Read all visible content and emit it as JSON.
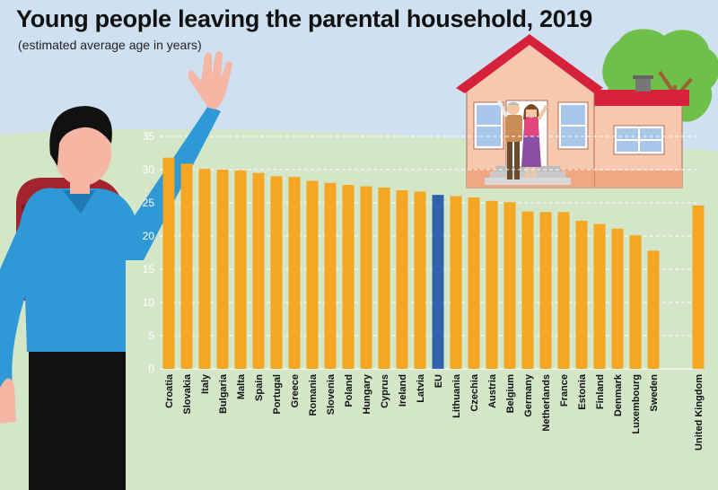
{
  "header": {
    "title": "Young people leaving the parental household, 2019",
    "subtitle": "(estimated average age in years)"
  },
  "colors": {
    "bar": "#f5a623",
    "eu_bar": "#2f63ad",
    "background": "#cfe0f1",
    "ground": "#d3e6c8"
  },
  "chart_data": {
    "type": "bar",
    "title": "Young people leaving the parental household, 2019",
    "subtitle": "(estimated average age in years)",
    "xlabel": "",
    "ylabel": "",
    "ylim": [
      0,
      35
    ],
    "yticks": [
      0,
      5,
      10,
      15,
      20,
      25,
      30,
      35
    ],
    "grid": true,
    "highlight": "EU",
    "categories": [
      "Croatia",
      "Slovakia",
      "Italy",
      "Bulgaria",
      "Malta",
      "Spain",
      "Portugal",
      "Greece",
      "Romania",
      "Slovenia",
      "Poland",
      "Hungary",
      "Cyprus",
      "Ireland",
      "Latvia",
      "EU",
      "Lithuania",
      "Czechia",
      "Austria",
      "Belgium",
      "Germany",
      "Netherlands",
      "France",
      "Estonia",
      "Finland",
      "Denmark",
      "Luxembourg",
      "Sweden",
      "United Kingdom"
    ],
    "values": [
      31.8,
      30.9,
      30.1,
      30.0,
      29.9,
      29.5,
      29.0,
      28.9,
      28.3,
      28.0,
      27.7,
      27.5,
      27.3,
      26.9,
      26.7,
      26.2,
      26.0,
      25.8,
      25.3,
      25.1,
      23.7,
      23.6,
      23.6,
      22.3,
      21.8,
      21.1,
      20.1,
      17.8,
      24.6
    ],
    "gaps_before": [
      "United Kingdom"
    ]
  },
  "icons": {
    "person": "waving-young-man-icon",
    "house": "house-icon",
    "parents": "waving-parents-icon",
    "tree": "tree-icon"
  }
}
